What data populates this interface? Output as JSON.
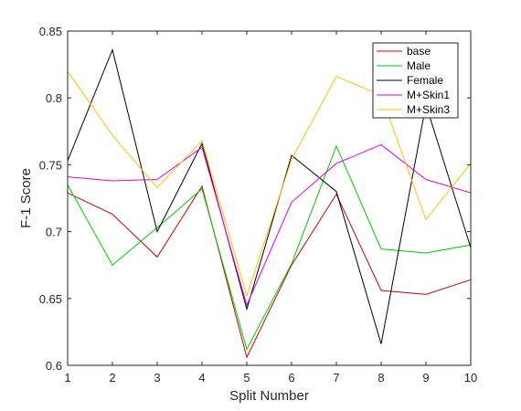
{
  "chart_data": {
    "type": "line",
    "title": "",
    "xlabel": "Split Number",
    "ylabel": "F-1 Score",
    "x": [
      1,
      2,
      3,
      4,
      5,
      6,
      7,
      8,
      9,
      10
    ],
    "xlim": [
      1,
      10
    ],
    "ylim": [
      0.6,
      0.85
    ],
    "xticks": [
      "1",
      "2",
      "3",
      "4",
      "5",
      "6",
      "7",
      "8",
      "9",
      "10"
    ],
    "yticks": [
      "0.6",
      "0.65",
      "0.7",
      "0.75",
      "0.8",
      "0.85"
    ],
    "grid": false,
    "legend_position": "top-right",
    "series": [
      {
        "name": "base",
        "color": "#cc0000",
        "values": [
          0.729,
          0.713,
          0.681,
          0.734,
          0.606,
          0.675,
          0.728,
          0.656,
          0.653,
          0.664
        ]
      },
      {
        "name": "Male",
        "color": "#00cc00",
        "values": [
          0.735,
          0.675,
          0.703,
          0.732,
          0.612,
          0.676,
          0.764,
          0.687,
          0.684,
          0.69
        ]
      },
      {
        "name": "Female",
        "color": "#000000",
        "values": [
          0.753,
          0.836,
          0.7,
          0.766,
          0.642,
          0.757,
          0.73,
          0.616,
          0.795,
          0.688
        ]
      },
      {
        "name": "M+Skin1",
        "color": "#e000e0",
        "values": [
          0.741,
          0.738,
          0.739,
          0.763,
          0.645,
          0.722,
          0.751,
          0.765,
          0.739,
          0.729
        ]
      },
      {
        "name": "M+Skin3",
        "color": "#ffbf00",
        "values": [
          0.82,
          0.772,
          0.733,
          0.768,
          0.652,
          0.754,
          0.816,
          0.802,
          0.709,
          0.751
        ]
      }
    ]
  }
}
